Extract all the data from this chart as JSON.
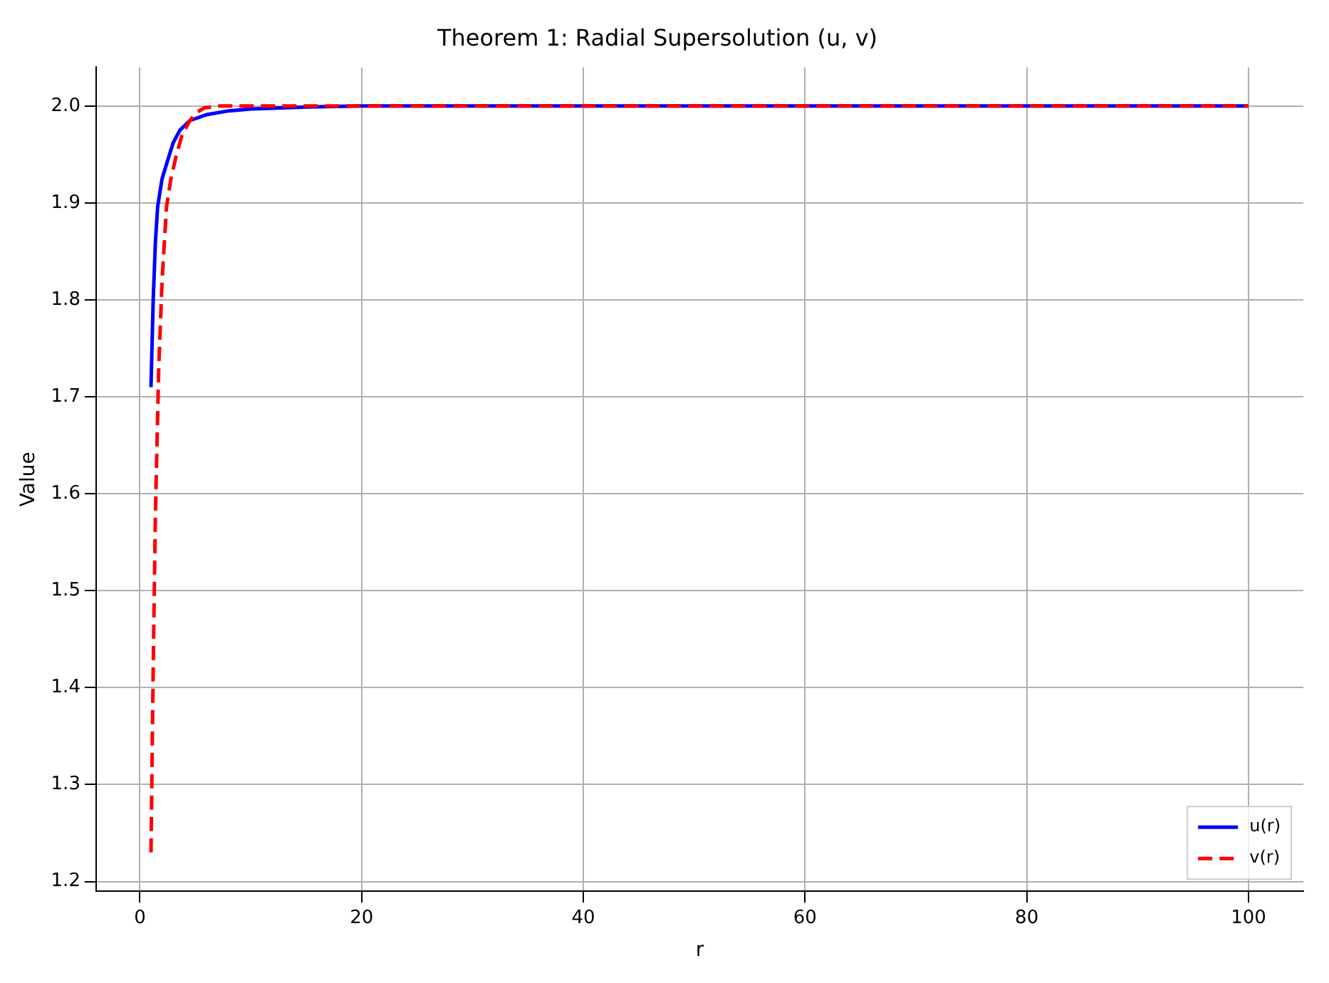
{
  "chart_data": {
    "type": "line",
    "title": "Theorem 1: Radial Supersolution (u, v)",
    "xlabel": "r",
    "ylabel": "Value",
    "xlim": [
      -3.95,
      104.95
    ],
    "ylim": [
      1.19,
      2.04
    ],
    "xticks": [
      0,
      20,
      40,
      60,
      80,
      100
    ],
    "yticks": [
      1.2,
      1.3,
      1.4,
      1.5,
      1.6,
      1.7,
      1.8,
      1.9,
      {
        "value": 2,
        "label": "2.0"
      }
    ],
    "grid": true,
    "legend": "bottom right",
    "series": [
      {
        "name": "u(r)",
        "color": "#0000ff",
        "line_style": "solid",
        "x": [
          1,
          1.2,
          1.4,
          1.6,
          2,
          2.4,
          3,
          3.6,
          4.5,
          6,
          8,
          10,
          15,
          20,
          40,
          60,
          80,
          100
        ],
        "values": [
          1.71,
          1.8,
          1.86,
          1.896,
          1.925,
          1.94,
          1.962,
          1.975,
          1.985,
          1.991,
          1.995,
          1.997,
          1.999,
          2.0,
          2.0,
          2.0,
          2.0,
          2.0
        ]
      },
      {
        "name": "v(r)",
        "color": "#ff0000",
        "line_style": "dashed",
        "x": [
          1,
          1.2,
          1.4,
          1.7,
          2,
          2.4,
          2.8,
          3.3,
          3.8,
          4.5,
          5.2,
          5.8,
          7,
          10,
          20,
          40,
          60,
          80,
          100
        ],
        "values": [
          1.23,
          1.42,
          1.58,
          1.73,
          1.82,
          1.896,
          1.925,
          1.95,
          1.97,
          1.985,
          1.994,
          1.998,
          2.0,
          2.0,
          2.0,
          2.0,
          2.0,
          2.0,
          2.0
        ]
      }
    ]
  }
}
